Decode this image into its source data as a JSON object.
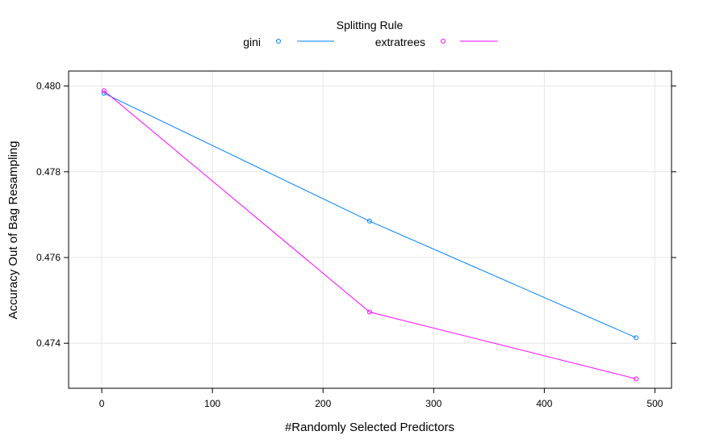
{
  "chart_data": {
    "type": "line",
    "title": "",
    "legend": {
      "title": "Splitting Rule",
      "placement": "top"
    },
    "xlabel": "#Randomly Selected Predictors",
    "ylabel": "Accuracy Out of Bag Resampling",
    "xlim": [
      -30,
      515
    ],
    "ylim": [
      0.47295,
      0.48035
    ],
    "xticks": [
      0,
      100,
      200,
      300,
      400,
      500
    ],
    "xtick_labels": [
      "0",
      "100",
      "200",
      "300",
      "400",
      "500"
    ],
    "yticks": [
      0.474,
      0.476,
      0.478,
      0.48
    ],
    "ytick_labels": [
      "0.474",
      "0.476",
      "0.478",
      "0.480"
    ],
    "grid": true,
    "series": [
      {
        "name": "gini",
        "color": "#0080ff",
        "x": [
          2,
          242,
          483
        ],
        "y": [
          0.47983,
          0.47685,
          0.47413
        ]
      },
      {
        "name": "extratrees",
        "color": "#ff00ff",
        "x": [
          2,
          242,
          483
        ],
        "y": [
          0.47989,
          0.47473,
          0.47317
        ]
      }
    ]
  }
}
